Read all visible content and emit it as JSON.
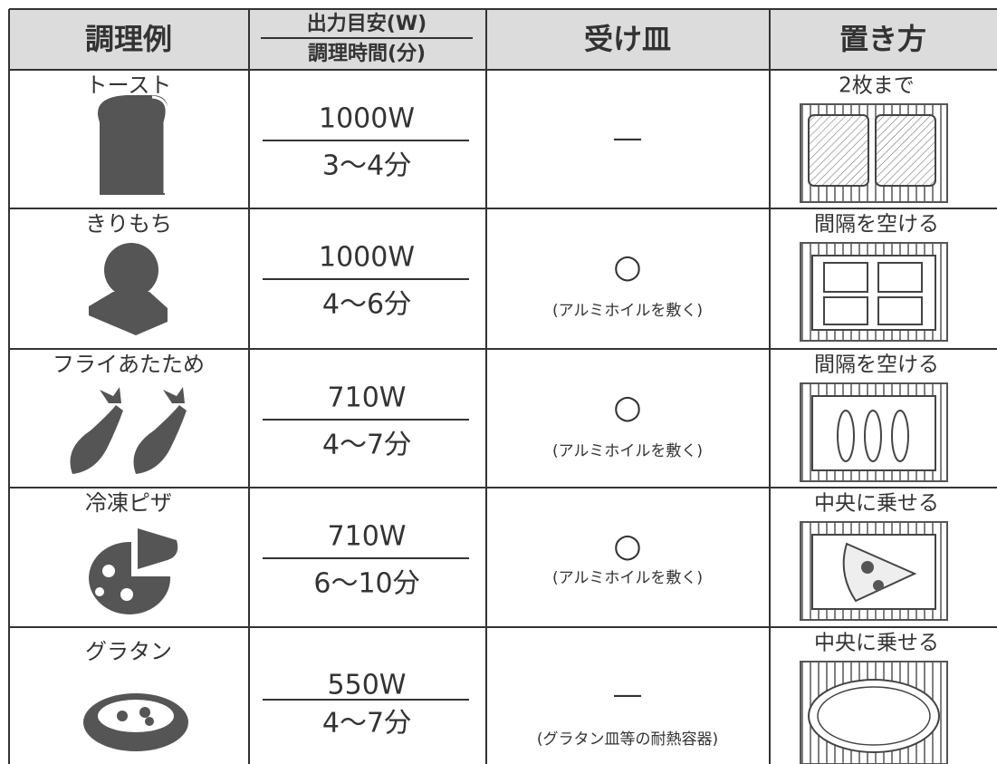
{
  "header": {
    "columns": [
      "調理例",
      {
        "top": "出力目安(W)",
        "bottom": "調理時間(分)"
      },
      "受け皿",
      "置き方"
    ]
  },
  "rows": [
    {
      "name": "トースト",
      "power": "1000W",
      "time": "3～4分",
      "tray": "―",
      "placement": "2枚まで"
    },
    {
      "name": "きりもち",
      "power": "1000W",
      "time": "4～6分",
      "tray": "○",
      "tray_note": "(アルミホイルを敷く)",
      "placement": "間隔を空ける"
    },
    {
      "name": "フライあたため",
      "power": "710W",
      "time": "4～7分",
      "tray": "○",
      "tray_note": "(アルミホイルを敷く)",
      "placement": "間隔を空ける"
    },
    {
      "name": "冷凍ピザ",
      "power": "710W",
      "time": "6～10分",
      "tray": "○",
      "tray_note": "(アルミホイルを敷く)",
      "placement": "中央に乗せる"
    },
    {
      "name": "グラタン",
      "power": "550W",
      "time": "4～7分",
      "tray": "―",
      "tray_note": "(グラタン皿等の耐熱容器)",
      "placement": "中央に乗せる"
    }
  ]
}
